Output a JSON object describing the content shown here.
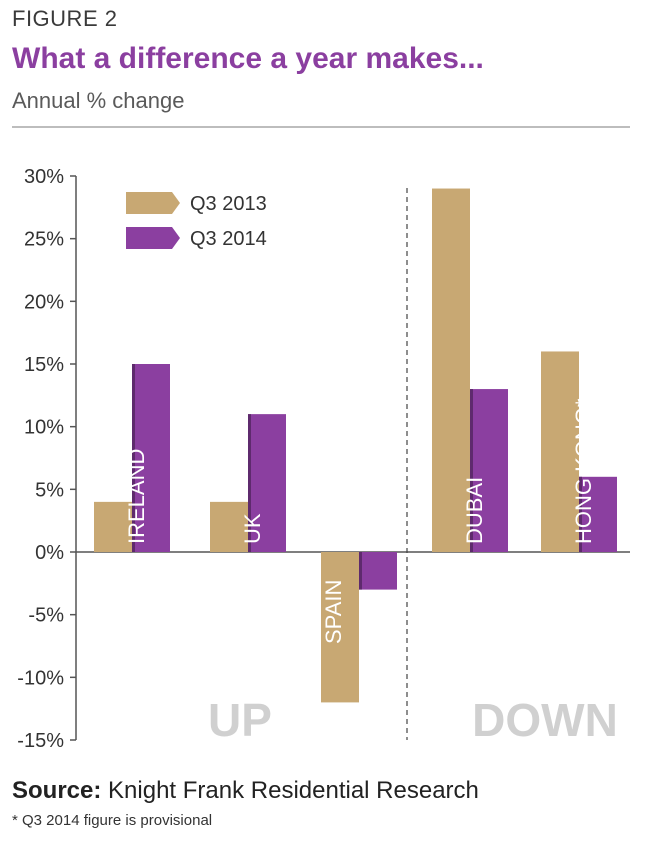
{
  "figure_label": "FIGURE 2",
  "colors": {
    "q3_2013": "#c8a873",
    "q3_2014": "#8b3fa0",
    "title": "#8b3fa0",
    "watermark": "#d0d0d0"
  },
  "chart_data": {
    "type": "bar",
    "title": "What a difference a year makes...",
    "subtitle": "Annual % change",
    "categories": [
      "IRELAND",
      "UK",
      "SPAIN",
      "DUBAI",
      "HONG KONG*"
    ],
    "series": [
      {
        "name": "Q3 2013",
        "values": [
          4,
          4,
          -12,
          29,
          16
        ]
      },
      {
        "name": "Q3 2014",
        "values": [
          15,
          11,
          -3,
          13,
          6
        ]
      }
    ],
    "ylim": [
      -15,
      30
    ],
    "yticks": [
      "30%",
      "25%",
      "20%",
      "15%",
      "10%",
      "5%",
      "0%",
      "-5%",
      "-10%",
      "-15%"
    ],
    "ytick_values": [
      30,
      25,
      20,
      15,
      10,
      5,
      0,
      -5,
      -10,
      -15
    ],
    "legend_position": "top-left",
    "group_labels": [
      "UP",
      "DOWN"
    ],
    "grid": false
  },
  "source": {
    "label": "Source:",
    "text": " Knight Frank Residential Research"
  },
  "footnote": "* Q3 2014 figure is provisional"
}
